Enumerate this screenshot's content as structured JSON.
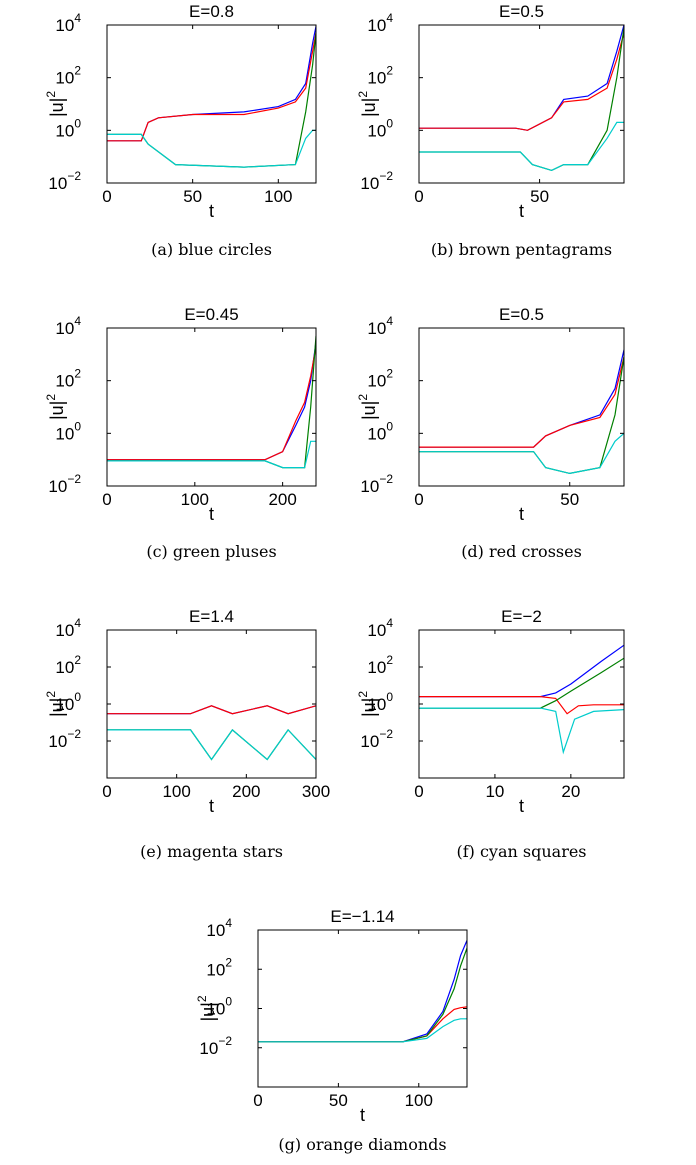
{
  "chart_data": [
    {
      "panel": "a",
      "type": "line",
      "title": "E=0.8",
      "caption": "(a) blue circles",
      "xlabel": "t",
      "ylabel": "|u|^2",
      "yscale": "log",
      "xlim": [
        0,
        122
      ],
      "ylim": [
        0.01,
        10000
      ],
      "xticks": [
        0,
        50,
        100
      ],
      "yticks": [
        0.01,
        1,
        100,
        10000
      ],
      "series": [
        {
          "color": "#0000ff",
          "points": [
            [
              0,
              0.4
            ],
            [
              20,
              0.4
            ],
            [
              24,
              2
            ],
            [
              30,
              3
            ],
            [
              50,
              4
            ],
            [
              80,
              5
            ],
            [
              100,
              8
            ],
            [
              110,
              15
            ],
            [
              116,
              60
            ],
            [
              120,
              2000
            ],
            [
              122,
              9000
            ]
          ]
        },
        {
          "color": "#ff0000",
          "points": [
            [
              0,
              0.4
            ],
            [
              20,
              0.4
            ],
            [
              24,
              2
            ],
            [
              30,
              3
            ],
            [
              50,
              4
            ],
            [
              80,
              4
            ],
            [
              100,
              7
            ],
            [
              110,
              12
            ],
            [
              116,
              40
            ],
            [
              120,
              1000
            ],
            [
              122,
              5000
            ]
          ]
        },
        {
          "color": "#008000",
          "points": [
            [
              0,
              0.7
            ],
            [
              20,
              0.7
            ],
            [
              24,
              0.3
            ],
            [
              40,
              0.05
            ],
            [
              80,
              0.04
            ],
            [
              110,
              0.05
            ],
            [
              116,
              5
            ],
            [
              120,
              300
            ],
            [
              122,
              5000
            ]
          ]
        },
        {
          "color": "#00cccc",
          "points": [
            [
              0,
              0.7
            ],
            [
              20,
              0.7
            ],
            [
              24,
              0.3
            ],
            [
              40,
              0.05
            ],
            [
              80,
              0.04
            ],
            [
              110,
              0.05
            ],
            [
              116,
              0.5
            ],
            [
              120,
              1
            ],
            [
              122,
              1
            ]
          ]
        }
      ]
    },
    {
      "panel": "b",
      "type": "line",
      "title": "E=0.5",
      "caption": "(b) brown pentagrams",
      "xlabel": "t",
      "ylabel": "|u|^2",
      "yscale": "log",
      "xlim": [
        0,
        85
      ],
      "ylim": [
        0.01,
        10000
      ],
      "xticks": [
        0,
        50
      ],
      "yticks": [
        0.01,
        1,
        100,
        10000
      ],
      "series": [
        {
          "color": "#0000ff",
          "points": [
            [
              0,
              1.2
            ],
            [
              40,
              1.2
            ],
            [
              45,
              1
            ],
            [
              55,
              3
            ],
            [
              60,
              15
            ],
            [
              70,
              20
            ],
            [
              78,
              60
            ],
            [
              82,
              1000
            ],
            [
              85,
              10000
            ]
          ]
        },
        {
          "color": "#ff0000",
          "points": [
            [
              0,
              1.2
            ],
            [
              40,
              1.2
            ],
            [
              45,
              1
            ],
            [
              55,
              3
            ],
            [
              60,
              12
            ],
            [
              70,
              15
            ],
            [
              78,
              40
            ],
            [
              82,
              500
            ],
            [
              85,
              5000
            ]
          ]
        },
        {
          "color": "#008000",
          "points": [
            [
              0,
              0.15
            ],
            [
              42,
              0.15
            ],
            [
              47,
              0.05
            ],
            [
              55,
              0.03
            ],
            [
              60,
              0.05
            ],
            [
              70,
              0.05
            ],
            [
              78,
              1
            ],
            [
              82,
              100
            ],
            [
              85,
              8000
            ]
          ]
        },
        {
          "color": "#00cccc",
          "points": [
            [
              0,
              0.15
            ],
            [
              42,
              0.15
            ],
            [
              47,
              0.05
            ],
            [
              55,
              0.03
            ],
            [
              60,
              0.05
            ],
            [
              70,
              0.05
            ],
            [
              78,
              0.5
            ],
            [
              82,
              2
            ],
            [
              85,
              2
            ]
          ]
        }
      ]
    },
    {
      "panel": "c",
      "type": "line",
      "title": "E=0.45",
      "caption": "(c) green pluses",
      "xlabel": "t",
      "ylabel": "|u|^2",
      "yscale": "log",
      "xlim": [
        0,
        238
      ],
      "ylim": [
        0.01,
        10000
      ],
      "xticks": [
        0,
        100,
        200
      ],
      "yticks": [
        0.01,
        1,
        100,
        10000
      ],
      "series": [
        {
          "color": "#0000ff",
          "points": [
            [
              0,
              0.1
            ],
            [
              180,
              0.1
            ],
            [
              200,
              0.2
            ],
            [
              215,
              2
            ],
            [
              225,
              10
            ],
            [
              232,
              100
            ],
            [
              238,
              3000
            ]
          ]
        },
        {
          "color": "#ff0000",
          "points": [
            [
              0,
              0.1
            ],
            [
              180,
              0.1
            ],
            [
              200,
              0.2
            ],
            [
              215,
              3
            ],
            [
              225,
              15
            ],
            [
              232,
              150
            ],
            [
              238,
              2000
            ]
          ]
        },
        {
          "color": "#008000",
          "points": [
            [
              0,
              0.09
            ],
            [
              180,
              0.09
            ],
            [
              200,
              0.05
            ],
            [
              215,
              0.05
            ],
            [
              225,
              0.05
            ],
            [
              232,
              10
            ],
            [
              238,
              5000
            ]
          ]
        },
        {
          "color": "#00cccc",
          "points": [
            [
              0,
              0.09
            ],
            [
              180,
              0.09
            ],
            [
              200,
              0.05
            ],
            [
              215,
              0.05
            ],
            [
              225,
              0.05
            ],
            [
              232,
              0.5
            ],
            [
              238,
              0.5
            ]
          ]
        }
      ]
    },
    {
      "panel": "d",
      "type": "line",
      "title": "E=0.5",
      "caption": "(d) red crosses",
      "xlabel": "t",
      "ylabel": "|u|^2",
      "yscale": "log",
      "xlim": [
        0,
        68
      ],
      "ylim": [
        0.01,
        10000
      ],
      "xticks": [
        0,
        50
      ],
      "yticks": [
        0.01,
        1,
        100,
        10000
      ],
      "series": [
        {
          "color": "#0000ff",
          "points": [
            [
              0,
              0.3
            ],
            [
              38,
              0.3
            ],
            [
              42,
              0.8
            ],
            [
              50,
              2
            ],
            [
              60,
              5
            ],
            [
              65,
              50
            ],
            [
              68,
              1500
            ]
          ]
        },
        {
          "color": "#ff0000",
          "points": [
            [
              0,
              0.3
            ],
            [
              38,
              0.3
            ],
            [
              42,
              0.8
            ],
            [
              50,
              2
            ],
            [
              60,
              4
            ],
            [
              65,
              30
            ],
            [
              68,
              800
            ]
          ]
        },
        {
          "color": "#008000",
          "points": [
            [
              0,
              0.2
            ],
            [
              38,
              0.2
            ],
            [
              42,
              0.05
            ],
            [
              50,
              0.03
            ],
            [
              60,
              0.05
            ],
            [
              65,
              5
            ],
            [
              68,
              800
            ]
          ]
        },
        {
          "color": "#00cccc",
          "points": [
            [
              0,
              0.2
            ],
            [
              38,
              0.2
            ],
            [
              42,
              0.05
            ],
            [
              50,
              0.03
            ],
            [
              60,
              0.05
            ],
            [
              65,
              0.5
            ],
            [
              68,
              1
            ]
          ]
        }
      ]
    },
    {
      "panel": "e",
      "type": "line",
      "title": "E=1.4",
      "caption": "(e) magenta stars",
      "xlabel": "t",
      "ylabel": "|u|^2",
      "yscale": "log",
      "xlim": [
        0,
        300
      ],
      "ylim": [
        0.0001,
        10000
      ],
      "xticks": [
        0,
        100,
        200,
        300
      ],
      "yticks": [
        0.01,
        1,
        100,
        10000
      ],
      "series": [
        {
          "color": "#0000ff",
          "points": [
            [
              0,
              0.3
            ],
            [
              120,
              0.3
            ],
            [
              150,
              0.8
            ],
            [
              180,
              0.3
            ],
            [
              230,
              0.8
            ],
            [
              260,
              0.3
            ],
            [
              300,
              0.8
            ]
          ]
        },
        {
          "color": "#ff0000",
          "points": [
            [
              0,
              0.3
            ],
            [
              120,
              0.3
            ],
            [
              150,
              0.8
            ],
            [
              180,
              0.3
            ],
            [
              230,
              0.8
            ],
            [
              260,
              0.3
            ],
            [
              300,
              0.8
            ]
          ]
        },
        {
          "color": "#008000",
          "points": [
            [
              0,
              0.04
            ],
            [
              120,
              0.04
            ],
            [
              150,
              0.001
            ],
            [
              180,
              0.04
            ],
            [
              230,
              0.001
            ],
            [
              260,
              0.04
            ],
            [
              300,
              0.001
            ]
          ]
        },
        {
          "color": "#00cccc",
          "points": [
            [
              0,
              0.04
            ],
            [
              120,
              0.04
            ],
            [
              150,
              0.001
            ],
            [
              180,
              0.04
            ],
            [
              230,
              0.001
            ],
            [
              260,
              0.04
            ],
            [
              300,
              0.001
            ]
          ]
        }
      ]
    },
    {
      "panel": "f",
      "type": "line",
      "title": "E=−2",
      "caption": "(f) cyan squares",
      "xlabel": "t",
      "ylabel": "|u|^2",
      "yscale": "log",
      "xlim": [
        0,
        27
      ],
      "ylim": [
        0.0001,
        10000
      ],
      "xticks": [
        0,
        10,
        20
      ],
      "yticks": [
        0.01,
        1,
        100,
        10000
      ],
      "series": [
        {
          "color": "#0000ff",
          "points": [
            [
              0,
              2.5
            ],
            [
              16,
              2.5
            ],
            [
              18,
              4
            ],
            [
              20,
              12
            ],
            [
              24,
              200
            ],
            [
              27,
              1500
            ]
          ]
        },
        {
          "color": "#ff0000",
          "points": [
            [
              0,
              2.5
            ],
            [
              16,
              2.5
            ],
            [
              18,
              2
            ],
            [
              19.5,
              0.3
            ],
            [
              21,
              0.8
            ],
            [
              23,
              0.9
            ],
            [
              27,
              0.9
            ]
          ]
        },
        {
          "color": "#008000",
          "points": [
            [
              0,
              0.6
            ],
            [
              16,
              0.6
            ],
            [
              18,
              1.5
            ],
            [
              20,
              5
            ],
            [
              24,
              50
            ],
            [
              27,
              300
            ]
          ]
        },
        {
          "color": "#00cccc",
          "points": [
            [
              0,
              0.6
            ],
            [
              16,
              0.6
            ],
            [
              18,
              0.4
            ],
            [
              19,
              0.0025
            ],
            [
              20.5,
              0.15
            ],
            [
              23,
              0.4
            ],
            [
              27,
              0.5
            ]
          ]
        }
      ]
    },
    {
      "panel": "g",
      "type": "line",
      "title": "E=−1.14",
      "caption": "(g) orange diamonds",
      "xlabel": "t",
      "ylabel": "|u|^2",
      "yscale": "log",
      "xlim": [
        0,
        130
      ],
      "ylim": [
        0.0001,
        10000
      ],
      "xticks": [
        0,
        50,
        100
      ],
      "yticks": [
        0.01,
        1,
        100,
        10000
      ],
      "series": [
        {
          "color": "#0000ff",
          "points": [
            [
              0,
              0.02
            ],
            [
              90,
              0.02
            ],
            [
              105,
              0.05
            ],
            [
              115,
              0.7
            ],
            [
              122,
              30
            ],
            [
              126,
              500
            ],
            [
              130,
              3000
            ]
          ]
        },
        {
          "color": "#ff0000",
          "points": [
            [
              0,
              0.02
            ],
            [
              90,
              0.02
            ],
            [
              105,
              0.04
            ],
            [
              115,
              0.3
            ],
            [
              122,
              0.9
            ],
            [
              126,
              1.1
            ],
            [
              130,
              1.2
            ]
          ]
        },
        {
          "color": "#008000",
          "points": [
            [
              0,
              0.02
            ],
            [
              90,
              0.02
            ],
            [
              105,
              0.04
            ],
            [
              115,
              0.5
            ],
            [
              122,
              10
            ],
            [
              126,
              150
            ],
            [
              130,
              1200
            ]
          ]
        },
        {
          "color": "#00cccc",
          "points": [
            [
              0,
              0.02
            ],
            [
              90,
              0.02
            ],
            [
              105,
              0.03
            ],
            [
              115,
              0.12
            ],
            [
              122,
              0.25
            ],
            [
              126,
              0.3
            ],
            [
              130,
              0.3
            ]
          ]
        }
      ]
    }
  ]
}
